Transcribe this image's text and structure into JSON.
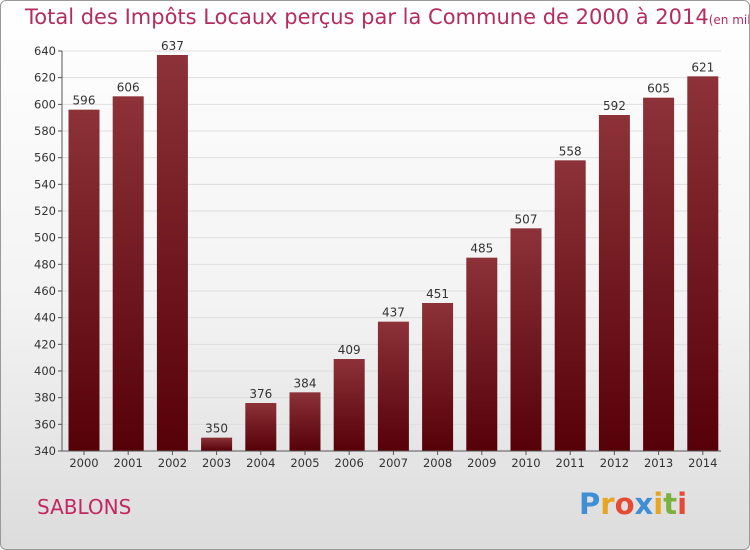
{
  "title": "Total des Impôts Locaux perçus par la Commune de 2000 à 2014",
  "unit": "(en milliers d'€)",
  "commune": "SABLONS",
  "logo": {
    "letters": [
      "P",
      "r",
      "o",
      "x",
      "i",
      "t",
      "i"
    ],
    "colors": [
      "#3e8fd6",
      "#e7a524",
      "#e54b34",
      "#3e8fd6",
      "#e7a524",
      "#7bb13c",
      "#e54b34"
    ]
  },
  "colors": {
    "bar_top": "#8c3238",
    "bar_bottom": "#560008",
    "title": "#b32d5e"
  },
  "chart_data": {
    "type": "bar",
    "title": "Total des Impôts Locaux perçus par la Commune de 2000 à 2014",
    "ylabel": "en milliers d'€",
    "categories": [
      "2000",
      "2001",
      "2002",
      "2003",
      "2004",
      "2005",
      "2006",
      "2007",
      "2008",
      "2009",
      "2010",
      "2011",
      "2012",
      "2013",
      "2014"
    ],
    "values": [
      596,
      606,
      637,
      350,
      376,
      384,
      409,
      437,
      451,
      485,
      507,
      558,
      592,
      605,
      621
    ],
    "ylim": [
      340,
      640
    ],
    "yticks": [
      340,
      360,
      380,
      400,
      420,
      440,
      460,
      480,
      500,
      520,
      540,
      560,
      580,
      600,
      620,
      640
    ],
    "grid": true
  }
}
